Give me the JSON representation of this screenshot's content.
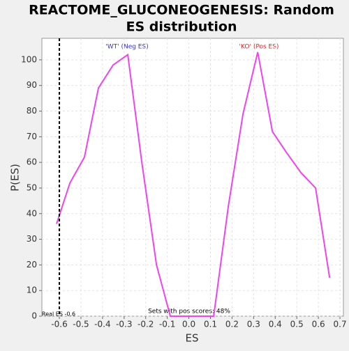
{
  "chart_data": {
    "type": "line",
    "title": "REACTOME_GLUCONEOGENESIS: Random ES distribution",
    "x_label": "ES",
    "y_label": "P(ES)",
    "x": [
      -0.613,
      -0.551,
      -0.484,
      -0.419,
      -0.351,
      -0.283,
      -0.218,
      -0.15,
      -0.086,
      -0.018,
      0.047,
      0.115,
      0.183,
      0.251,
      0.319,
      0.387,
      0.451,
      0.519,
      0.587,
      0.652
    ],
    "series": [
      {
        "name": "P(ES)",
        "color": "#ee44ee",
        "values": [
          36,
          52,
          62,
          89,
          98,
          102,
          60,
          20,
          0,
          0,
          0,
          0,
          43,
          79,
          103,
          72,
          64,
          56,
          50,
          15
        ]
      }
    ],
    "xlim": [
      -0.681,
      0.716
    ],
    "ylim": [
      0,
      108.4
    ],
    "xticks": [
      -0.6,
      -0.5,
      -0.4,
      -0.3,
      -0.2,
      -0.1,
      {
        "value": 0,
        "label": "0.0"
      },
      0.1,
      0.2,
      0.3,
      0.4,
      0.5,
      0.6,
      0.7
    ],
    "yticks": [
      0,
      10,
      20,
      30,
      40,
      50,
      60,
      70,
      80,
      90,
      100
    ],
    "grid": true,
    "real_es": -0.6,
    "annotations": {
      "neg": "'WT' (Neg ES)",
      "pos": "'KO' (Pos ES)",
      "pos_scores": "Sets with pos scores: 48%",
      "real_es_label": "Real ES -0.6"
    }
  }
}
